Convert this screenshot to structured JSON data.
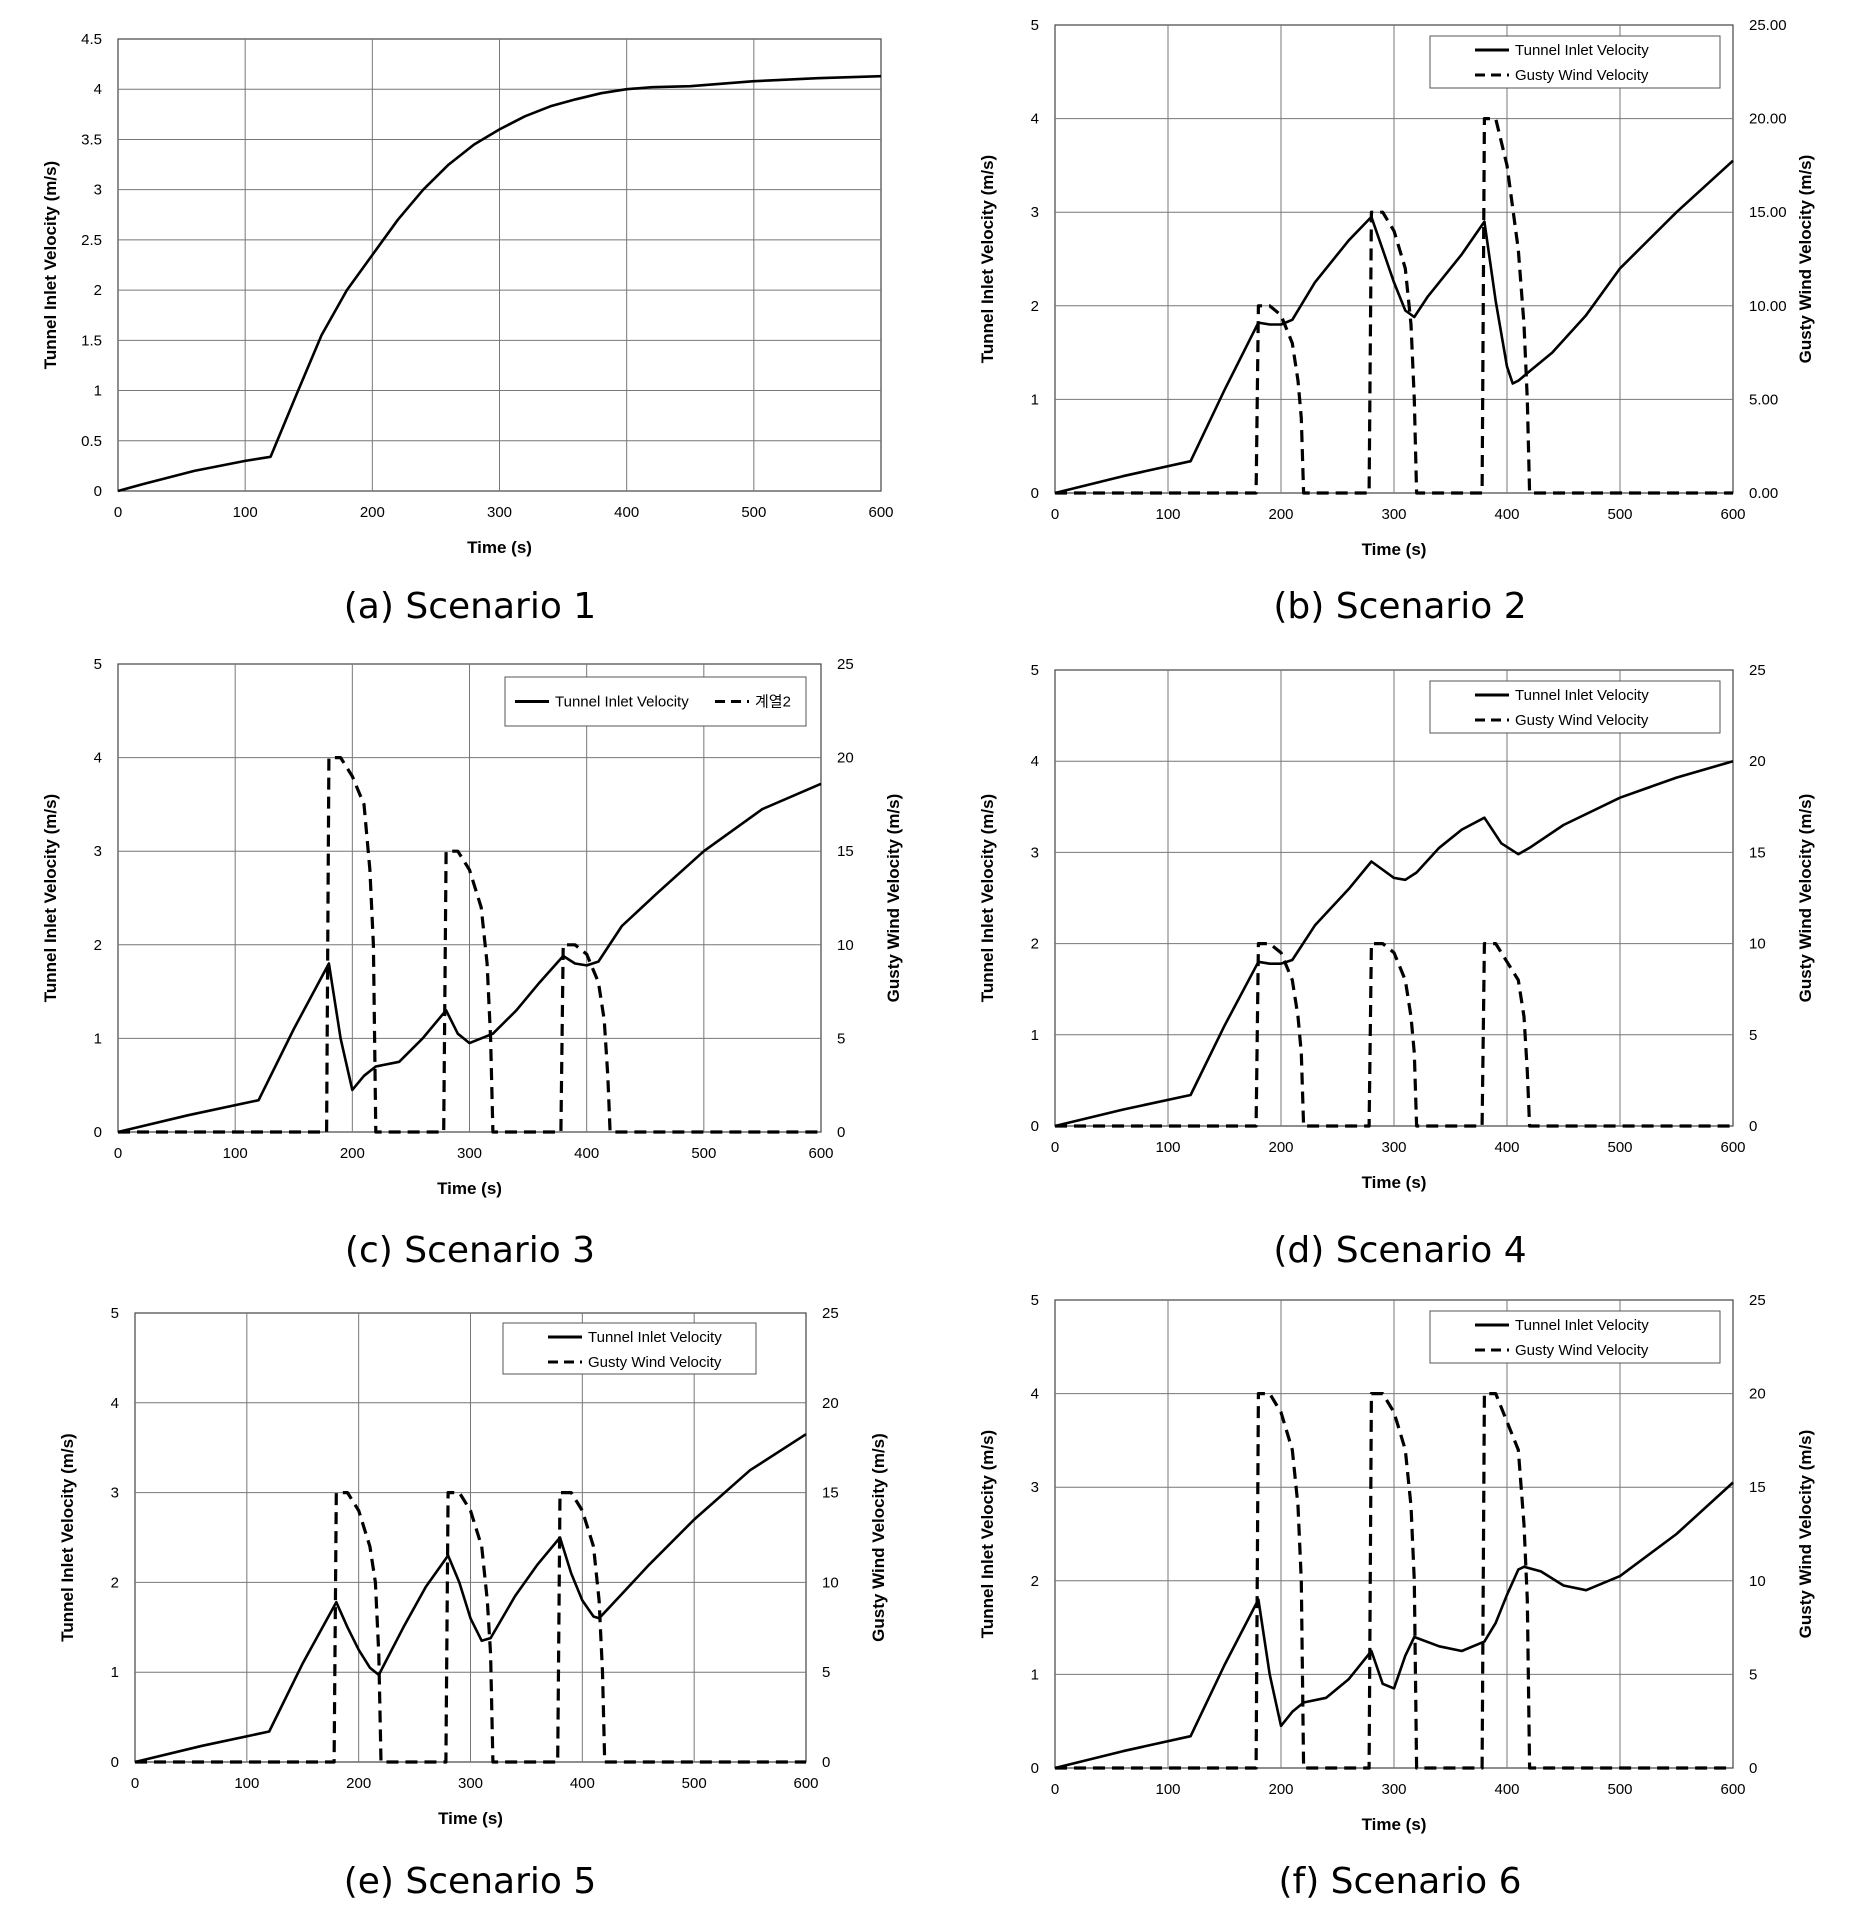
{
  "figure": {
    "captions": [
      "(a) Scenario 1",
      "(b) Scenario 2",
      "(c) Scenario 3",
      "(d) Scenario 4",
      "(e) Scenario 5",
      "(f) Scenario 6"
    ]
  },
  "chart_data": [
    {
      "id": "a",
      "type": "line",
      "title": "(a) Scenario 1",
      "xlabel": "Time (s)",
      "ylabel": "Tunnel Inlet Velocity (m/s)",
      "y2label": null,
      "xlim": [
        0,
        600
      ],
      "ylim": [
        0,
        4.5
      ],
      "y2lim": null,
      "xticks": [
        "0",
        "100",
        "200",
        "300",
        "400",
        "500",
        "600"
      ],
      "yticks": [
        "0",
        "0.5",
        "1",
        "1.5",
        "2",
        "2.5",
        "3",
        "3.5",
        "4",
        "4.5"
      ],
      "y2ticks": [],
      "grid": true,
      "legend": null,
      "series": [
        {
          "name": "Tunnel Inlet Velocity",
          "axis": "left",
          "style": "solid",
          "x": [
            0,
            20,
            60,
            100,
            120,
            140,
            160,
            180,
            200,
            220,
            240,
            260,
            280,
            300,
            320,
            340,
            360,
            380,
            400,
            420,
            450,
            500,
            550,
            600
          ],
          "y": [
            0,
            0.07,
            0.2,
            0.3,
            0.34,
            0.95,
            1.55,
            2.0,
            2.35,
            2.7,
            3.0,
            3.25,
            3.45,
            3.6,
            3.73,
            3.83,
            3.9,
            3.96,
            4.0,
            4.02,
            4.03,
            4.08,
            4.11,
            4.13
          ]
        }
      ]
    },
    {
      "id": "b",
      "type": "line",
      "title": "(b) Scenario 2",
      "xlabel": "Time (s)",
      "ylabel": "Tunnel Inlet Velocity (m/s)",
      "y2label": "Gusty Wind Velocity (m/s)",
      "xlim": [
        0,
        600
      ],
      "ylim": [
        0,
        5
      ],
      "y2lim": [
        0,
        25
      ],
      "xticks": [
        "0",
        "100",
        "200",
        "300",
        "400",
        "500",
        "600"
      ],
      "yticks": [
        "0",
        "1",
        "2",
        "3",
        "4",
        "5"
      ],
      "y2ticks": [
        "0.00",
        "5.00",
        "10.00",
        "15.00",
        "20.00",
        "25.00"
      ],
      "grid": true,
      "legend": {
        "position": "top-right",
        "entries": [
          "Tunnel Inlet Velocity",
          "Gusty Wind Velocity"
        ]
      },
      "series": [
        {
          "name": "Tunnel Inlet Velocity",
          "axis": "left",
          "style": "solid",
          "x": [
            0,
            60,
            120,
            150,
            180,
            190,
            200,
            210,
            230,
            260,
            280,
            290,
            300,
            310,
            318,
            330,
            360,
            380,
            390,
            400,
            405,
            410,
            420,
            440,
            470,
            500,
            550,
            600
          ],
          "y": [
            0,
            0.18,
            0.34,
            1.1,
            1.82,
            1.8,
            1.8,
            1.85,
            2.25,
            2.7,
            2.95,
            2.6,
            2.25,
            1.95,
            1.88,
            2.1,
            2.55,
            2.9,
            2.05,
            1.35,
            1.17,
            1.2,
            1.3,
            1.5,
            1.9,
            2.4,
            3.0,
            3.55
          ]
        },
        {
          "name": "Gusty Wind Velocity",
          "axis": "right",
          "style": "dashed",
          "x": [
            0,
            178,
            180,
            190,
            200,
            210,
            215,
            218,
            220,
            222,
            278,
            280,
            290,
            300,
            310,
            315,
            318,
            320,
            322,
            378,
            380,
            390,
            400,
            410,
            415,
            418,
            420,
            600
          ],
          "y": [
            0,
            0,
            10,
            10,
            9.5,
            8,
            6,
            4,
            0,
            0,
            0,
            15,
            15,
            14,
            12,
            9,
            5,
            0,
            0,
            0,
            20,
            20,
            17.5,
            13,
            9,
            5,
            0,
            0
          ]
        }
      ]
    },
    {
      "id": "c",
      "type": "line",
      "title": "(c) Scenario 3",
      "xlabel": "Time (s)",
      "ylabel": "Tunnel Inlet Velocity (m/s)",
      "y2label": "Gusty Wind Velocity (m/s)",
      "xlim": [
        0,
        600
      ],
      "ylim": [
        0,
        5
      ],
      "y2lim": [
        0,
        25
      ],
      "xticks": [
        "0",
        "100",
        "200",
        "300",
        "400",
        "500",
        "600"
      ],
      "yticks": [
        "0",
        "1",
        "2",
        "3",
        "4",
        "5"
      ],
      "y2ticks": [
        "0",
        "5",
        "10",
        "15",
        "20",
        "25"
      ],
      "grid": true,
      "legend": {
        "position": "top-right",
        "entries": [
          "Tunnel Inlet Velocity",
          "계열2"
        ]
      },
      "series": [
        {
          "name": "Tunnel Inlet Velocity",
          "axis": "left",
          "style": "solid",
          "x": [
            0,
            60,
            120,
            150,
            180,
            190,
            200,
            210,
            220,
            240,
            260,
            280,
            290,
            300,
            320,
            340,
            360,
            380,
            390,
            400,
            410,
            430,
            460,
            500,
            550,
            600
          ],
          "y": [
            0,
            0.18,
            0.34,
            1.1,
            1.8,
            1.0,
            0.45,
            0.6,
            0.7,
            0.75,
            1.0,
            1.3,
            1.05,
            0.95,
            1.05,
            1.3,
            1.6,
            1.88,
            1.8,
            1.78,
            1.82,
            2.2,
            2.55,
            3.0,
            3.45,
            3.72
          ]
        },
        {
          "name": "계열2",
          "axis": "right",
          "style": "dashed",
          "x": [
            0,
            178,
            180,
            190,
            200,
            210,
            215,
            218,
            220,
            222,
            278,
            280,
            290,
            300,
            310,
            315,
            318,
            320,
            322,
            378,
            380,
            390,
            400,
            410,
            415,
            418,
            420,
            600
          ],
          "y": [
            0,
            0,
            20,
            20,
            19,
            17.5,
            14,
            10,
            0,
            0,
            0,
            15,
            15,
            14,
            12,
            9,
            5,
            0,
            0,
            0,
            10,
            10,
            9.5,
            8,
            6,
            3,
            0,
            0
          ]
        }
      ]
    },
    {
      "id": "d",
      "type": "line",
      "title": "(d) Scenario 4",
      "xlabel": "Time (s)",
      "ylabel": "Tunnel Inlet Velocity (m/s)",
      "y2label": "Gusty Wind Velocity (m/s)",
      "xlim": [
        0,
        600
      ],
      "ylim": [
        0,
        5
      ],
      "y2lim": [
        0,
        25
      ],
      "xticks": [
        "0",
        "100",
        "200",
        "300",
        "400",
        "500",
        "600"
      ],
      "yticks": [
        "0",
        "1",
        "2",
        "3",
        "4",
        "5"
      ],
      "y2ticks": [
        "0",
        "5",
        "10",
        "15",
        "20",
        "25"
      ],
      "grid": true,
      "legend": {
        "position": "top-right",
        "entries": [
          "Tunnel Inlet Velocity",
          "Gusty Wind Velocity"
        ]
      },
      "series": [
        {
          "name": "Tunnel Inlet Velocity",
          "axis": "left",
          "style": "solid",
          "x": [
            0,
            60,
            120,
            150,
            180,
            190,
            200,
            210,
            230,
            260,
            280,
            300,
            310,
            320,
            340,
            360,
            380,
            395,
            410,
            420,
            450,
            500,
            550,
            600
          ],
          "y": [
            0,
            0.18,
            0.34,
            1.1,
            1.8,
            1.78,
            1.78,
            1.82,
            2.2,
            2.6,
            2.9,
            2.72,
            2.7,
            2.78,
            3.05,
            3.25,
            3.38,
            3.1,
            2.98,
            3.05,
            3.3,
            3.6,
            3.82,
            4.0
          ]
        },
        {
          "name": "Gusty Wind Velocity",
          "axis": "right",
          "style": "dashed",
          "x": [
            0,
            178,
            180,
            190,
            200,
            210,
            215,
            218,
            220,
            222,
            278,
            280,
            290,
            300,
            310,
            315,
            318,
            320,
            322,
            378,
            380,
            390,
            400,
            410,
            415,
            418,
            420,
            600
          ],
          "y": [
            0,
            0,
            10,
            10,
            9.5,
            8,
            6,
            4,
            0,
            0,
            0,
            10,
            10,
            9.5,
            8,
            6,
            4,
            0,
            0,
            0,
            10,
            10,
            9,
            8,
            6,
            3,
            0,
            0
          ]
        }
      ]
    },
    {
      "id": "e",
      "type": "line",
      "title": "(e) Scenario 5",
      "xlabel": "Time (s)",
      "ylabel": "Tunnel Inlet Velocity (m/s)",
      "y2label": "Gusty Wind Velocity (m/s)",
      "xlim": [
        0,
        600
      ],
      "ylim": [
        0,
        5
      ],
      "y2lim": [
        0,
        25
      ],
      "xticks": [
        "0",
        "100",
        "200",
        "300",
        "400",
        "500",
        "600"
      ],
      "yticks": [
        "0",
        "1",
        "2",
        "3",
        "4",
        "5"
      ],
      "y2ticks": [
        "0",
        "5",
        "10",
        "15",
        "20",
        "25"
      ],
      "grid": true,
      "legend": {
        "position": "top-right",
        "entries": [
          "Tunnel Inlet Velocity",
          "Gusty Wind Velocity"
        ]
      },
      "series": [
        {
          "name": "Tunnel Inlet Velocity",
          "axis": "left",
          "style": "solid",
          "x": [
            0,
            60,
            120,
            150,
            180,
            190,
            200,
            210,
            218,
            240,
            260,
            280,
            290,
            300,
            310,
            318,
            340,
            360,
            380,
            390,
            400,
            410,
            415,
            430,
            460,
            500,
            550,
            600
          ],
          "y": [
            0,
            0.18,
            0.34,
            1.1,
            1.78,
            1.5,
            1.25,
            1.05,
            0.97,
            1.5,
            1.95,
            2.3,
            2.0,
            1.6,
            1.35,
            1.38,
            1.85,
            2.2,
            2.5,
            2.1,
            1.8,
            1.62,
            1.6,
            1.8,
            2.2,
            2.7,
            3.25,
            3.65
          ]
        },
        {
          "name": "Gusty Wind Velocity",
          "axis": "right",
          "style": "dashed",
          "x": [
            0,
            178,
            180,
            190,
            200,
            210,
            215,
            218,
            220,
            222,
            278,
            280,
            290,
            300,
            310,
            315,
            318,
            320,
            322,
            378,
            380,
            390,
            400,
            410,
            415,
            418,
            420,
            600
          ],
          "y": [
            0,
            0,
            15,
            15,
            14,
            12,
            10,
            6,
            0,
            0,
            0,
            15,
            15,
            14,
            12,
            9,
            6,
            0,
            0,
            0,
            15,
            15,
            14,
            12,
            9,
            5,
            0,
            0
          ]
        }
      ]
    },
    {
      "id": "f",
      "type": "line",
      "title": "(f) Scenario 6",
      "xlabel": "Time (s)",
      "ylabel": "Tunnel Inlet Velocity (m/s)",
      "y2label": "Gusty Wind Velocity (m/s)",
      "xlim": [
        0,
        600
      ],
      "ylim": [
        0,
        5
      ],
      "y2lim": [
        0,
        25
      ],
      "xticks": [
        "0",
        "100",
        "200",
        "300",
        "400",
        "500",
        "600"
      ],
      "yticks": [
        "0",
        "1",
        "2",
        "3",
        "4",
        "5"
      ],
      "y2ticks": [
        "0",
        "5",
        "10",
        "15",
        "20",
        "25"
      ],
      "grid": true,
      "legend": {
        "position": "top-right",
        "entries": [
          "Tunnel Inlet Velocity",
          "Gusty Wind Velocity"
        ]
      },
      "series": [
        {
          "name": "Tunnel Inlet Velocity",
          "axis": "left",
          "style": "solid",
          "x": [
            0,
            60,
            120,
            150,
            180,
            190,
            200,
            210,
            220,
            240,
            260,
            280,
            290,
            300,
            310,
            318,
            340,
            360,
            380,
            390,
            400,
            410,
            415,
            430,
            450,
            470,
            500,
            550,
            600
          ],
          "y": [
            0,
            0.18,
            0.34,
            1.1,
            1.8,
            1.0,
            0.45,
            0.6,
            0.7,
            0.75,
            0.95,
            1.25,
            0.9,
            0.85,
            1.2,
            1.4,
            1.3,
            1.25,
            1.35,
            1.55,
            1.85,
            2.12,
            2.15,
            2.1,
            1.95,
            1.9,
            2.05,
            2.5,
            3.05
          ]
        },
        {
          "name": "Gusty Wind Velocity",
          "axis": "right",
          "style": "dashed",
          "x": [
            0,
            178,
            180,
            190,
            200,
            210,
            215,
            218,
            220,
            222,
            278,
            280,
            290,
            300,
            310,
            315,
            318,
            320,
            322,
            378,
            380,
            390,
            400,
            410,
            415,
            418,
            420,
            600
          ],
          "y": [
            0,
            0,
            20,
            20,
            19,
            17,
            14,
            10,
            0,
            0,
            0,
            20,
            20,
            19,
            17,
            14,
            10,
            0,
            0,
            0,
            20,
            20,
            18.5,
            17,
            13,
            9,
            0,
            0
          ]
        }
      ]
    }
  ]
}
